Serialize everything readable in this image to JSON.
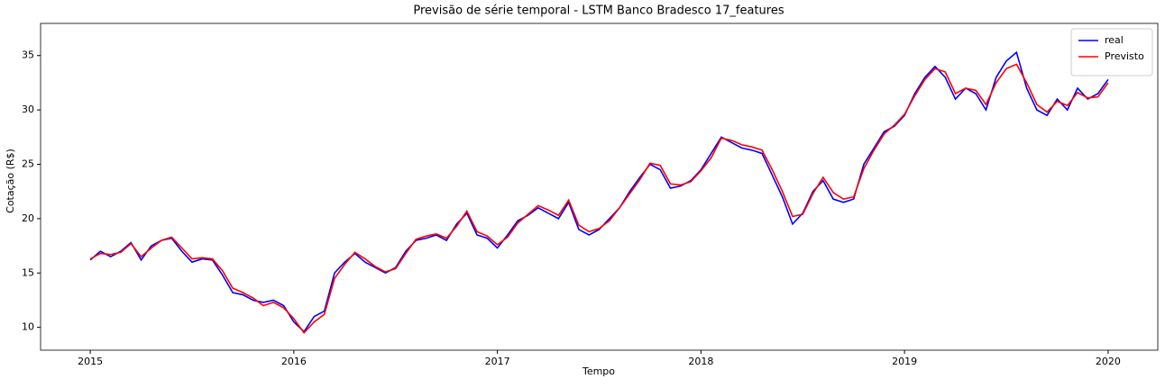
{
  "chart_data": {
    "type": "line",
    "title": "Previsão de série temporal - LSTM Banco Bradesco 17_features",
    "xlabel": "Tempo",
    "ylabel": "Cotação (R$)",
    "x": [
      2015.0,
      2015.05,
      2015.1,
      2015.15,
      2015.2,
      2015.25,
      2015.3,
      2015.35,
      2015.4,
      2015.45,
      2015.5,
      2015.55,
      2015.6,
      2015.65,
      2015.7,
      2015.75,
      2015.8,
      2015.85,
      2015.9,
      2015.95,
      2016.0,
      2016.05,
      2016.1,
      2016.15,
      2016.2,
      2016.25,
      2016.3,
      2016.35,
      2016.4,
      2016.45,
      2016.5,
      2016.55,
      2016.6,
      2016.65,
      2016.7,
      2016.75,
      2016.8,
      2016.85,
      2016.9,
      2016.95,
      2017.0,
      2017.05,
      2017.1,
      2017.15,
      2017.2,
      2017.25,
      2017.3,
      2017.35,
      2017.4,
      2017.45,
      2017.5,
      2017.55,
      2017.6,
      2017.65,
      2017.7,
      2017.75,
      2017.8,
      2017.85,
      2017.9,
      2017.95,
      2018.0,
      2018.05,
      2018.1,
      2018.15,
      2018.2,
      2018.25,
      2018.3,
      2018.35,
      2018.4,
      2018.45,
      2018.5,
      2018.55,
      2018.6,
      2018.65,
      2018.7,
      2018.75,
      2018.8,
      2018.85,
      2018.9,
      2018.95,
      2019.0,
      2019.05,
      2019.1,
      2019.15,
      2019.2,
      2019.25,
      2019.3,
      2019.35,
      2019.4,
      2019.45,
      2019.5,
      2019.55,
      2019.6,
      2019.65,
      2019.7,
      2019.75,
      2019.8,
      2019.85,
      2019.9,
      2019.95,
      2020.0
    ],
    "series": [
      {
        "name": "real",
        "color": "#0000ff",
        "values": [
          16.2,
          17.0,
          16.5,
          17.0,
          17.8,
          16.2,
          17.5,
          18.0,
          18.2,
          17.0,
          16.0,
          16.3,
          16.2,
          14.8,
          13.2,
          13.0,
          12.5,
          12.3,
          12.5,
          12.0,
          10.5,
          9.6,
          11.0,
          11.5,
          15.0,
          16.0,
          16.8,
          16.0,
          15.5,
          15.0,
          15.5,
          17.0,
          18.0,
          18.2,
          18.5,
          18.0,
          19.5,
          20.5,
          18.5,
          18.2,
          17.3,
          18.5,
          19.8,
          20.3,
          21.0,
          20.5,
          20.0,
          21.5,
          19.0,
          18.5,
          19.0,
          20.0,
          21.0,
          22.5,
          23.8,
          25.0,
          24.5,
          22.8,
          23.0,
          23.5,
          24.5,
          26.0,
          27.5,
          27.0,
          26.5,
          26.3,
          26.0,
          24.0,
          22.0,
          19.5,
          20.5,
          22.5,
          23.5,
          21.8,
          21.5,
          21.8,
          25.0,
          26.5,
          28.0,
          28.5,
          29.5,
          31.5,
          33.0,
          34.0,
          33.0,
          31.0,
          32.0,
          31.5,
          30.0,
          33.0,
          34.5,
          35.3,
          32.0,
          30.0,
          29.5,
          31.0,
          30.0,
          32.0,
          31.0,
          31.5,
          32.8
        ]
      },
      {
        "name": "Previsto",
        "color": "#ff0000",
        "values": [
          16.3,
          16.8,
          16.7,
          16.9,
          17.7,
          16.5,
          17.3,
          18.0,
          18.3,
          17.3,
          16.3,
          16.4,
          16.3,
          15.2,
          13.6,
          13.2,
          12.7,
          12.0,
          12.3,
          11.8,
          10.8,
          9.5,
          10.5,
          11.2,
          14.5,
          15.8,
          16.9,
          16.3,
          15.6,
          15.1,
          15.4,
          16.8,
          18.1,
          18.4,
          18.6,
          18.2,
          19.3,
          20.7,
          18.8,
          18.4,
          17.6,
          18.3,
          19.6,
          20.4,
          21.2,
          20.8,
          20.3,
          21.7,
          19.4,
          18.8,
          19.1,
          19.8,
          21.0,
          22.3,
          23.6,
          25.1,
          24.9,
          23.2,
          23.1,
          23.4,
          24.4,
          25.6,
          27.4,
          27.2,
          26.8,
          26.6,
          26.3,
          24.5,
          22.5,
          20.2,
          20.4,
          22.3,
          23.8,
          22.4,
          21.8,
          22.0,
          24.6,
          26.3,
          27.8,
          28.6,
          29.6,
          31.3,
          32.8,
          33.8,
          33.5,
          31.5,
          32.0,
          31.8,
          30.5,
          32.5,
          33.8,
          34.2,
          32.5,
          30.5,
          29.8,
          30.8,
          30.4,
          31.6,
          31.1,
          31.2,
          32.5
        ]
      }
    ],
    "xlim": [
      2014.756,
      2020.244
    ],
    "xticks": [
      2015,
      2016,
      2017,
      2018,
      2019,
      2020
    ],
    "ylim": [
      7.9,
      37.96
    ],
    "yticks": [
      10,
      15,
      20,
      25,
      30,
      35
    ],
    "grid": false,
    "legend": "upper right"
  }
}
